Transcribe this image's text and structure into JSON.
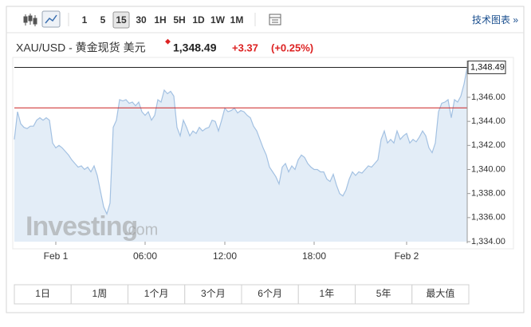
{
  "toolbar": {
    "intervals": [
      "1",
      "5",
      "15",
      "30",
      "1H",
      "5H",
      "1D",
      "1W",
      "1M"
    ],
    "selected_index": 2,
    "link": "技术图表 »"
  },
  "header": {
    "title": "XAU/USD - 黄金现货 美元",
    "price": "1,348.49",
    "change": "+3.37",
    "change_pct": "(+0.25%)"
  },
  "chart_data": {
    "type": "area",
    "categories": [
      null,
      null,
      null,
      null,
      null,
      null,
      null,
      null,
      null,
      null,
      null,
      null,
      null,
      "Feb 1",
      null,
      null,
      null,
      null,
      null,
      null,
      null,
      null,
      null,
      null,
      null,
      null,
      null,
      null,
      null,
      null,
      null,
      null,
      null,
      null,
      null,
      null,
      null,
      null,
      null,
      null,
      null,
      "06:00",
      null,
      null,
      null,
      null,
      null,
      null,
      null,
      null,
      null,
      null,
      null,
      null,
      null,
      null,
      null,
      null,
      null,
      null,
      null,
      null,
      null,
      null,
      null,
      null,
      "12:00",
      null,
      null,
      null,
      null,
      null,
      null,
      null,
      null,
      null,
      null,
      null,
      null,
      null,
      null,
      null,
      null,
      null,
      null,
      null,
      null,
      null,
      null,
      null,
      null,
      null,
      null,
      null,
      "18:00",
      null,
      null,
      null,
      null,
      null,
      null,
      null,
      null,
      null,
      null,
      null,
      null,
      null,
      null,
      null,
      null,
      null,
      null,
      null,
      null,
      null,
      null,
      null,
      null,
      null,
      null,
      null,
      null,
      "Feb 2",
      null,
      null,
      null,
      null,
      null,
      null,
      null,
      null,
      null,
      null,
      null,
      null,
      null,
      null,
      null,
      null,
      null,
      null,
      null
    ],
    "values": [
      1342.5,
      1344.8,
      1343.8,
      1343.5,
      1343.4,
      1343.6,
      1343.6,
      1344.1,
      1344.3,
      1344.1,
      1344.3,
      1344.1,
      1342.2,
      1341.8,
      1342.0,
      1341.8,
      1341.5,
      1341.2,
      1340.8,
      1340.5,
      1340.2,
      1340.3,
      1340.0,
      1340.2,
      1339.8,
      1340.3,
      1339.5,
      1338.2,
      1336.9,
      1336.3,
      1337.2,
      1343.5,
      1344.1,
      1345.8,
      1345.7,
      1345.8,
      1345.5,
      1345.6,
      1345.3,
      1345.6,
      1344.8,
      1344.5,
      1344.8,
      1344.1,
      1344.5,
      1345.8,
      1345.6,
      1346.6,
      1346.3,
      1346.5,
      1346.1,
      1343.5,
      1342.8,
      1344.1,
      1343.5,
      1342.8,
      1343.2,
      1343.0,
      1343.5,
      1343.2,
      1343.4,
      1343.5,
      1344.1,
      1344.0,
      1343.2,
      1344.1,
      1345.1,
      1344.8,
      1344.9,
      1345.1,
      1344.7,
      1344.9,
      1344.8,
      1344.5,
      1344.3,
      1343.6,
      1343.2,
      1342.5,
      1341.8,
      1341.2,
      1340.2,
      1339.8,
      1339.4,
      1338.8,
      1340.2,
      1340.5,
      1339.8,
      1340.3,
      1340.0,
      1340.8,
      1341.2,
      1341.0,
      1340.5,
      1340.2,
      1340.0,
      1340.0,
      1339.8,
      1339.8,
      1339.2,
      1339.0,
      1339.6,
      1338.7,
      1338.0,
      1337.8,
      1338.3,
      1339.2,
      1339.8,
      1339.5,
      1339.8,
      1339.7,
      1340.0,
      1340.3,
      1340.2,
      1340.5,
      1340.8,
      1342.5,
      1343.2,
      1342.2,
      1342.5,
      1342.2,
      1343.2,
      1342.5,
      1342.8,
      1343.0,
      1342.2,
      1342.5,
      1342.3,
      1342.7,
      1343.2,
      1342.8,
      1341.8,
      1341.4,
      1342.2,
      1344.8,
      1345.5,
      1345.6,
      1345.8,
      1344.3,
      1345.8,
      1345.6,
      1346.1,
      1347.1,
      1348.49
    ],
    "color": "#a3c1e2",
    "fill": "#e3edf7",
    "ylim": [
      1334,
      1349.05
    ],
    "yticks": [
      {
        "value": 1334,
        "label": "1,334.00"
      },
      {
        "value": 1336,
        "label": "1,336.00"
      },
      {
        "value": 1338,
        "label": "1,338.00"
      },
      {
        "value": 1340,
        "label": "1,340.00"
      },
      {
        "value": 1342,
        "label": "1,342.00"
      },
      {
        "value": 1344,
        "label": "1,344.00"
      },
      {
        "value": 1346,
        "label": "1,346.00"
      }
    ],
    "last_price": {
      "value": 1348.49,
      "label": "1,348.49"
    },
    "reference_line": 1345.12,
    "reference_color": "#cc2222",
    "watermark": {
      "main": "Investing",
      "suffix": ".com"
    }
  },
  "ranges": [
    "1日",
    "1周",
    "1个月",
    "3个月",
    "6个月",
    "1年",
    "5年",
    "最大值"
  ]
}
